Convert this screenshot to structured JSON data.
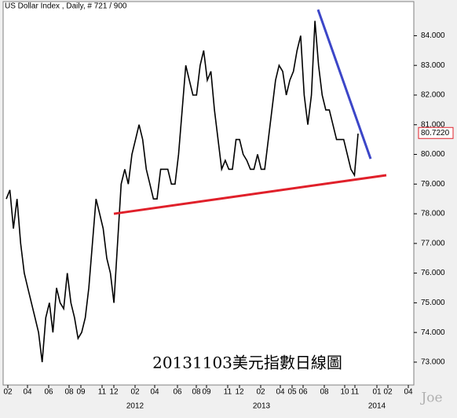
{
  "chart_data": {
    "type": "line",
    "title": "US Dollar Index , Daily, # 721 / 900",
    "caption": "20131103美元指數日線圖",
    "watermark": "Joe",
    "x_labels": [
      "02",
      "04",
      "06",
      "08",
      "09",
      "11",
      "12",
      "02",
      "04",
      "06",
      "08",
      "09",
      "11",
      "12",
      "02",
      "04",
      "05",
      "06",
      "08",
      "10",
      "11",
      "01",
      "02",
      "04"
    ],
    "year_labels": [
      "2012",
      "2013",
      "2014"
    ],
    "color": "#000000",
    "values": [
      78.5,
      78.8,
      77.5,
      78.5,
      77,
      76,
      75.5,
      75,
      74.5,
      74,
      73,
      74.5,
      75,
      74,
      75.5,
      75,
      74.8,
      76,
      75,
      74.5,
      73.8,
      74,
      74.5,
      75.5,
      77,
      78.5,
      78,
      77.5,
      76.5,
      76,
      75,
      77,
      79,
      79.5,
      79,
      80,
      80.5,
      81,
      80.5,
      79.5,
      79,
      78.5,
      78.5,
      79.5,
      79.5,
      79.5,
      79,
      79,
      80,
      81.5,
      83,
      82.5,
      82,
      82,
      83,
      83.5,
      82.5,
      82.8,
      81.5,
      80.5,
      79.5,
      79.8,
      79.5,
      79.5,
      80.5,
      80.5,
      80,
      79.8,
      79.5,
      79.5,
      80,
      79.5,
      79.5,
      80.5,
      81.5,
      82.5,
      83,
      82.8,
      82,
      82.5,
      82.8,
      83.5,
      84,
      82,
      81,
      82,
      84.5,
      83,
      82,
      81.5,
      81.5,
      81,
      80.5,
      80.5,
      80.5,
      80,
      79.5,
      79.3,
      80.7
    ],
    "trendlines": [
      {
        "color": "#e0202a",
        "values": [
          78.0,
          79.3
        ]
      },
      {
        "color": "#3c46c8",
        "values": [
          84.88,
          79.85
        ]
      }
    ],
    "last_value": {
      "value": 80.722,
      "label": "80.7220"
    },
    "ylim": [
      72.23,
      85.15
    ],
    "yticks": [
      {
        "value": 73,
        "label": "73.000"
      },
      {
        "value": 74,
        "label": "74.000"
      },
      {
        "value": 75,
        "label": "75.000"
      },
      {
        "value": 76,
        "label": "76.000"
      },
      {
        "value": 77,
        "label": "77.000"
      },
      {
        "value": 78,
        "label": "78.000"
      },
      {
        "value": 79,
        "label": "79.000"
      },
      {
        "value": 80,
        "label": "80.000"
      },
      {
        "value": 81,
        "label": "81.000"
      },
      {
        "value": 82,
        "label": "82.000"
      },
      {
        "value": 83,
        "label": "83.000"
      },
      {
        "value": 84,
        "label": "84.000"
      }
    ]
  }
}
